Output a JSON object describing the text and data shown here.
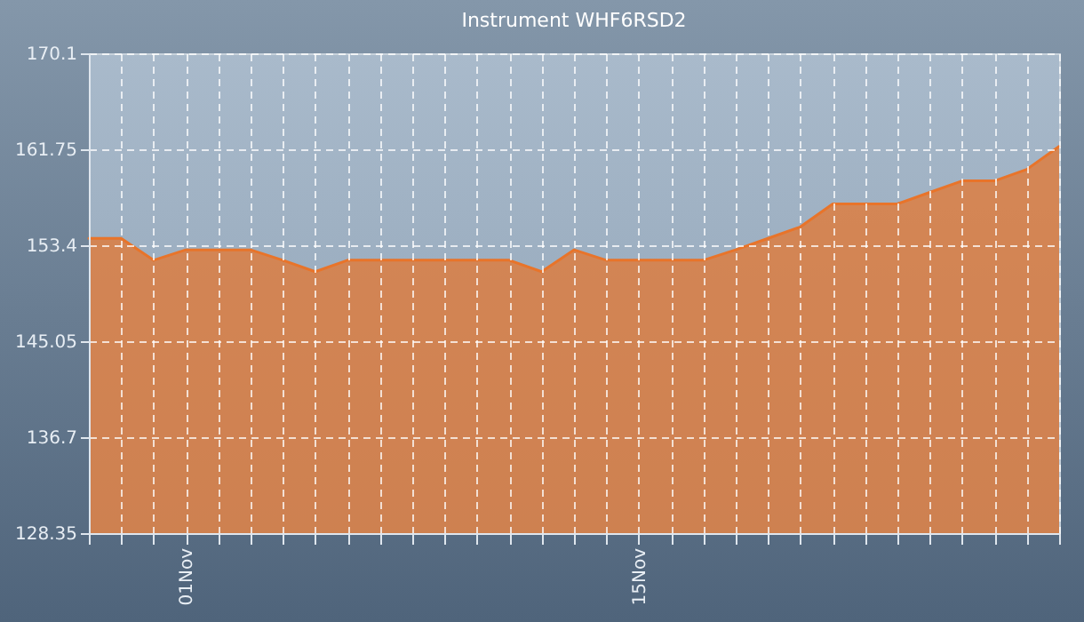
{
  "chart_data": {
    "type": "area",
    "title": "Instrument WHF6RSD2",
    "x": [
      "--10-29",
      "--10-30",
      "--10-31",
      "--11-01",
      "--11-02",
      "--11-03",
      "--11-04",
      "--11-05",
      "--11-06",
      "--11-07",
      "--11-08",
      "--11-09",
      "--11-10",
      "--11-11",
      "--11-12",
      "--11-13",
      "--11-14",
      "--11-15",
      "--11-16",
      "--11-17",
      "--11-18",
      "--11-19",
      "--11-20",
      "--11-21",
      "--11-22",
      "--11-23",
      "--11-24",
      "--11-25",
      "--11-26",
      "--11-27",
      "--11-28"
    ],
    "series": [
      {
        "color": "#e8742a",
        "values": [
          154.0,
          154.0,
          152.1,
          153.0,
          153.0,
          153.0,
          152.1,
          151.1,
          152.1,
          152.1,
          152.1,
          152.1,
          152.1,
          152.1,
          151.1,
          153.0,
          152.1,
          152.1,
          152.1,
          152.1,
          153.0,
          154.0,
          155.0,
          157.0,
          157.0,
          157.0,
          158.0,
          159.0,
          159.0,
          160.0,
          162.0
        ]
      }
    ],
    "xlim": [
      "--10-29",
      "--11-28"
    ],
    "xticks": [
      {
        "value": "--10-29",
        "label": null
      },
      {
        "value": "--10-30",
        "label": null
      },
      {
        "value": "--10-31",
        "label": null
      },
      {
        "value": "--11-01",
        "label": "01Nov"
      },
      {
        "value": "--11-02",
        "label": null
      },
      {
        "value": "--11-03",
        "label": null
      },
      {
        "value": "--11-04",
        "label": null
      },
      {
        "value": "--11-05",
        "label": null
      },
      {
        "value": "--11-06",
        "label": null
      },
      {
        "value": "--11-07",
        "label": null
      },
      {
        "value": "--11-08",
        "label": null
      },
      {
        "value": "--11-09",
        "label": null
      },
      {
        "value": "--11-10",
        "label": null
      },
      {
        "value": "--11-11",
        "label": null
      },
      {
        "value": "--11-12",
        "label": null
      },
      {
        "value": "--11-13",
        "label": null
      },
      {
        "value": "--11-14",
        "label": null
      },
      {
        "value": "--11-15",
        "label": "15Nov"
      },
      {
        "value": "--11-16",
        "label": null
      },
      {
        "value": "--11-17",
        "label": null
      },
      {
        "value": "--11-18",
        "label": null
      },
      {
        "value": "--11-19",
        "label": null
      },
      {
        "value": "--11-20",
        "label": null
      },
      {
        "value": "--11-21",
        "label": null
      },
      {
        "value": "--11-22",
        "label": null
      },
      {
        "value": "--11-23",
        "label": null
      },
      {
        "value": "--11-24",
        "label": null
      },
      {
        "value": "--11-25",
        "label": null
      },
      {
        "value": "--11-26",
        "label": null
      },
      {
        "value": "--11-27",
        "label": null
      },
      {
        "value": "--11-28",
        "label": null
      }
    ],
    "ylim": [
      128.35,
      170.1
    ],
    "yticks": [
      128.35,
      136.7,
      145.05,
      153.4,
      161.75,
      170.1
    ],
    "grid": true
  }
}
